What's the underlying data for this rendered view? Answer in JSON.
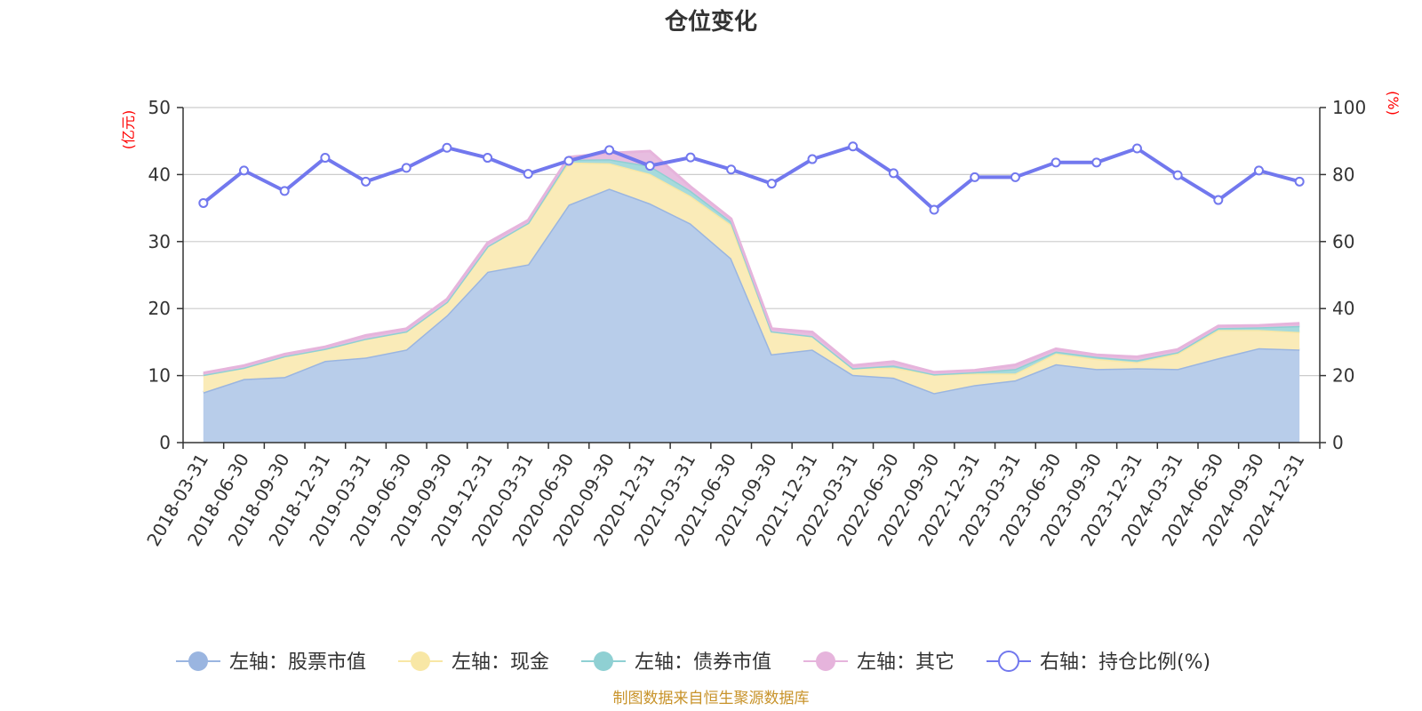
{
  "chart_data": {
    "type": "area",
    "title": "仓位变化",
    "left_axis_unit": "(亿元)",
    "right_axis_unit": "(%)",
    "left_ylim": [
      0,
      50
    ],
    "left_ticks": [
      0,
      10,
      20,
      30,
      40,
      50
    ],
    "right_ylim": [
      0,
      100
    ],
    "right_ticks": [
      0,
      20,
      40,
      60,
      80,
      100
    ],
    "x_labels_shown": [
      "2018-03-31",
      "2018-06-30",
      "2018-09-30",
      "2018-12-31",
      "2019-03-31",
      "2019-06-30",
      "2019-09-30",
      "2019-12-31",
      "2020-03-31",
      "2020-06-30",
      "2020-09-30",
      "2020-12-31",
      "2021-03-31",
      "2021-06-30",
      "2021-09-30",
      "2021-12-31",
      "2022-03-31",
      "2022-06-30",
      "2022-09-30",
      "2022-12-31",
      "2023-03-31",
      "2023-06-30",
      "2023-09-30",
      "2023-12-31",
      "2024-03-31",
      "2024-06-30",
      "2024-09-30",
      "2024-12-31"
    ],
    "categories": [
      "2018-03-31",
      "2018-06-30",
      "2018-09-30",
      "2018-12-31",
      "2019-03-31",
      "2019-06-30",
      "2019-09-30",
      "2019-12-31",
      "2020-03-31",
      "2020-06-30",
      "2020-09-30",
      "2020-12-31",
      "2021-03-31",
      "2021-06-30",
      "2021-09-30",
      "2021-12-31",
      "2022-03-31",
      "2022-06-30",
      "2022-09-30",
      "2022-12-31",
      "2023-03-31",
      "2023-06-30",
      "2023-09-30",
      "2023-12-31",
      "2024-03-31",
      "2024-06-30",
      "2024-09-30",
      "2024-12-31"
    ],
    "series": [
      {
        "name": "左轴：股票市值",
        "axis": "left",
        "color": "#9ab5e0",
        "fill": "#b8cdea",
        "values": [
          7.5,
          9.5,
          9.8,
          12.2,
          12.7,
          13.9,
          19.0,
          25.5,
          26.6,
          35.5,
          37.9,
          35.7,
          32.7,
          27.5,
          13.2,
          13.9,
          10.1,
          9.7,
          7.4,
          8.6,
          9.3,
          11.7,
          11.0,
          11.1,
          11.0,
          12.6,
          14.1,
          13.9
        ]
      },
      {
        "name": "左轴：现金",
        "axis": "left",
        "color": "#f8e7a5",
        "fill": "#faebb8",
        "values": [
          2.6,
          1.7,
          3.1,
          1.8,
          2.8,
          2.7,
          2.0,
          3.8,
          6.2,
          6.3,
          3.8,
          4.4,
          4.1,
          5.0,
          3.4,
          2.0,
          1.0,
          1.5,
          2.8,
          1.7,
          1.0,
          1.6,
          1.5,
          0.9,
          2.3,
          4.2,
          2.7,
          2.6
        ]
      },
      {
        "name": "左轴：债券市值",
        "axis": "left",
        "color": "#8fd0d3",
        "fill": "#a6dadc",
        "values": [
          0,
          0,
          0,
          0,
          0,
          0,
          0,
          0,
          0,
          0.4,
          0.6,
          1.2,
          0.8,
          0.5,
          0,
          0,
          0,
          0.3,
          0,
          0.2,
          0.7,
          0.3,
          0.3,
          0.3,
          0.2,
          0.3,
          0.4,
          0.9
        ]
      },
      {
        "name": "左轴：其它",
        "axis": "left",
        "color": "#e6b4dc",
        "fill": "#e7bde0",
        "values": [
          0.3,
          0.3,
          0.3,
          0.3,
          0.5,
          0.4,
          0.4,
          0.5,
          0.4,
          0.4,
          0.9,
          2.2,
          0.6,
          0.4,
          0.4,
          0.6,
          0.4,
          0.6,
          0.3,
          0.3,
          0.6,
          0.4,
          0.3,
          0.5,
          0.4,
          0.3,
          0.3,
          0.4
        ]
      },
      {
        "name": "右轴：持仓比例(%)",
        "axis": "right",
        "color": "#7278ee",
        "values": [
          71.5,
          81.2,
          75.1,
          85.0,
          77.9,
          82.0,
          88.0,
          85.0,
          80.2,
          84.1,
          87.3,
          82.6,
          85.1,
          81.5,
          77.3,
          84.6,
          88.4,
          80.4,
          69.5,
          79.2,
          79.2,
          83.6,
          83.6,
          87.8,
          79.8,
          72.4,
          81.2,
          77.9
        ]
      }
    ]
  },
  "footer": {
    "source": "制图数据来自恒生聚源数据库"
  },
  "colors": {
    "title": "#333333",
    "axis_unit": "#ff0000",
    "source": "#c8932a",
    "grid": "#cccccc",
    "axis": "#333333"
  }
}
